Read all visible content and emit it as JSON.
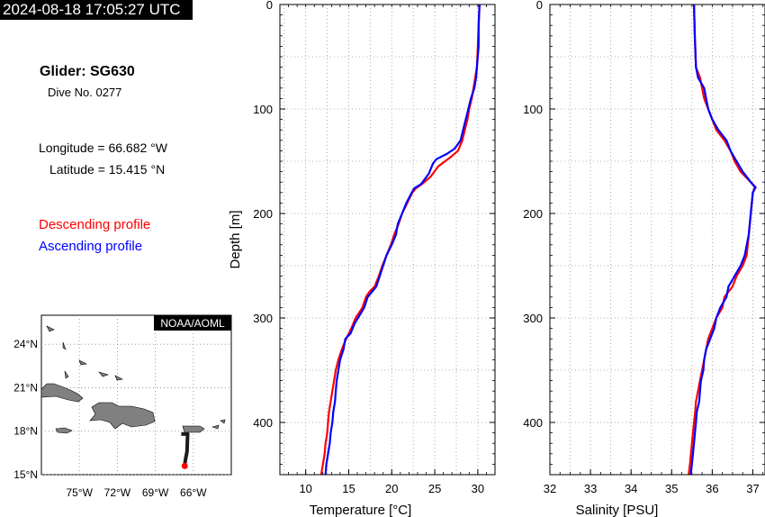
{
  "header": {
    "timestamp": "2024-08-18 17:05:27 UTC"
  },
  "info": {
    "glider": "Glider: SG630",
    "dive": "Dive No. 0277",
    "longitude": "Longitude = 66.682 °W",
    "latitude": "Latitude = 15.415 °N"
  },
  "legend": {
    "descending": "Descending profile",
    "ascending": "Ascending profile"
  },
  "colors": {
    "descending": "#ff0000",
    "ascending": "#0000ff",
    "land": "#808080",
    "track": "#1a1a1a",
    "position": "#ff0000"
  },
  "map": {
    "credit": "NOAA/AOML",
    "lat_ticks": [
      "24°N",
      "21°N",
      "18°N",
      "15°N"
    ],
    "lon_ticks": [
      "75°W",
      "72°W",
      "69°W",
      "66°W"
    ],
    "lat_values": [
      24,
      21,
      18,
      15
    ],
    "lon_values": [
      -75,
      -72,
      -69,
      -66
    ],
    "extent": {
      "lon": [
        -78,
        -63
      ],
      "lat": [
        15,
        26
      ]
    },
    "track": [
      [
        -66.95,
        17.8
      ],
      [
        -66.45,
        17.8
      ],
      [
        -66.5,
        16.6
      ],
      [
        -66.65,
        15.9
      ],
      [
        -66.682,
        15.415
      ]
    ],
    "position": [
      -66.682,
      15.415
    ]
  },
  "chart_data": [
    {
      "type": "line",
      "xlabel": "Temperature [°C]",
      "ylabel": "Depth [m]",
      "xlim": [
        7,
        32
      ],
      "ylim": [
        450,
        0
      ],
      "xticks": [
        10,
        15,
        20,
        25,
        30
      ],
      "yticks": [
        0,
        100,
        200,
        300,
        400
      ],
      "grid": true,
      "series": [
        {
          "name": "Descending profile",
          "points": [
            [
              30.2,
              0
            ],
            [
              30.1,
              20
            ],
            [
              30,
              40
            ],
            [
              29.9,
              60
            ],
            [
              29.7,
              70
            ],
            [
              29.5,
              80
            ],
            [
              29.3,
              90
            ],
            [
              29,
              100
            ],
            [
              28.8,
              110
            ],
            [
              28.5,
              120
            ],
            [
              28.2,
              130
            ],
            [
              27.7,
              140
            ],
            [
              27,
              145
            ],
            [
              26.2,
              150
            ],
            [
              25.4,
              155
            ],
            [
              24.5,
              165
            ],
            [
              23.5,
              172
            ],
            [
              22.8,
              176
            ],
            [
              22.4,
              180
            ],
            [
              21.8,
              190
            ],
            [
              21.2,
              200
            ],
            [
              20.8,
              210
            ],
            [
              20.3,
              220
            ],
            [
              19.9,
              230
            ],
            [
              19.4,
              240
            ],
            [
              18.9,
              250
            ],
            [
              18.5,
              260
            ],
            [
              18,
              270
            ],
            [
              17.4,
              275
            ],
            [
              17,
              280
            ],
            [
              16.6,
              290
            ],
            [
              16.2,
              295
            ],
            [
              15.8,
              300
            ],
            [
              15.3,
              310
            ],
            [
              14.7,
              320
            ],
            [
              14.2,
              330
            ],
            [
              13.8,
              340
            ],
            [
              13.5,
              350
            ],
            [
              13.3,
              360
            ],
            [
              13.1,
              370
            ],
            [
              12.9,
              380
            ],
            [
              12.7,
              390
            ],
            [
              12.6,
              400
            ],
            [
              12.5,
              410
            ],
            [
              12.3,
              420
            ],
            [
              12.2,
              430
            ],
            [
              12,
              440
            ],
            [
              11.8,
              450
            ]
          ]
        },
        {
          "name": "Ascending profile",
          "points": [
            [
              30.2,
              0
            ],
            [
              30.1,
              20
            ],
            [
              30.1,
              40
            ],
            [
              29.9,
              60
            ],
            [
              29.8,
              70
            ],
            [
              29.6,
              80
            ],
            [
              29.2,
              90
            ],
            [
              28.9,
              100
            ],
            [
              28.6,
              110
            ],
            [
              28.3,
              120
            ],
            [
              28,
              130
            ],
            [
              27.3,
              138
            ],
            [
              26.4,
              143
            ],
            [
              25.2,
              148
            ],
            [
              24.8,
              152
            ],
            [
              24.3,
              162
            ],
            [
              23.4,
              172
            ],
            [
              22.6,
              176
            ],
            [
              22.2,
              182
            ],
            [
              21.7,
              190
            ],
            [
              21.2,
              200
            ],
            [
              20.7,
              210
            ],
            [
              20.5,
              220
            ],
            [
              20,
              230
            ],
            [
              19.4,
              240
            ],
            [
              19,
              250
            ],
            [
              18.6,
              260
            ],
            [
              18.2,
              270
            ],
            [
              17.7,
              275
            ],
            [
              17.2,
              280
            ],
            [
              16.8,
              290
            ],
            [
              16.3,
              297
            ],
            [
              15.7,
              305
            ],
            [
              15.2,
              315
            ],
            [
              14.6,
              320
            ],
            [
              14.4,
              330
            ],
            [
              14,
              340
            ],
            [
              13.8,
              350
            ],
            [
              13.6,
              360
            ],
            [
              13.5,
              370
            ],
            [
              13.4,
              380
            ],
            [
              13.2,
              390
            ],
            [
              13.1,
              400
            ],
            [
              12.9,
              410
            ],
            [
              12.8,
              420
            ],
            [
              12.6,
              430
            ],
            [
              12.4,
              440
            ],
            [
              12.3,
              450
            ]
          ]
        }
      ]
    },
    {
      "type": "line",
      "xlabel": "Salinity [PSU]",
      "ylabel": "",
      "xlim": [
        32,
        37.3
      ],
      "ylim": [
        450,
        0
      ],
      "xticks": [
        32,
        33,
        34,
        35,
        36,
        37
      ],
      "yticks": [
        0,
        100,
        200,
        300,
        400
      ],
      "grid": true,
      "series": [
        {
          "name": "Descending profile",
          "points": [
            [
              35.55,
              0
            ],
            [
              35.57,
              30
            ],
            [
              35.6,
              60
            ],
            [
              35.7,
              70
            ],
            [
              35.75,
              80
            ],
            [
              35.8,
              90
            ],
            [
              35.9,
              100
            ],
            [
              36,
              110
            ],
            [
              36.1,
              120
            ],
            [
              36.3,
              130
            ],
            [
              36.45,
              140
            ],
            [
              36.55,
              150
            ],
            [
              36.7,
              160
            ],
            [
              36.95,
              170
            ],
            [
              37.05,
              175
            ],
            [
              37,
              180
            ],
            [
              36.95,
              200
            ],
            [
              36.9,
              220
            ],
            [
              36.85,
              240
            ],
            [
              36.75,
              250
            ],
            [
              36.6,
              260
            ],
            [
              36.5,
              270
            ],
            [
              36.3,
              280
            ],
            [
              36.25,
              290
            ],
            [
              36.1,
              300
            ],
            [
              36,
              310
            ],
            [
              35.9,
              320
            ],
            [
              35.85,
              330
            ],
            [
              35.8,
              340
            ],
            [
              35.75,
              350
            ],
            [
              35.7,
              360
            ],
            [
              35.65,
              370
            ],
            [
              35.6,
              380
            ],
            [
              35.58,
              390
            ],
            [
              35.55,
              400
            ],
            [
              35.5,
              420
            ],
            [
              35.45,
              440
            ],
            [
              35.42,
              450
            ]
          ]
        },
        {
          "name": "Ascending profile",
          "points": [
            [
              35.55,
              0
            ],
            [
              35.57,
              30
            ],
            [
              35.6,
              60
            ],
            [
              35.65,
              70
            ],
            [
              35.8,
              80
            ],
            [
              35.85,
              90
            ],
            [
              35.9,
              100
            ],
            [
              36,
              110
            ],
            [
              36.15,
              120
            ],
            [
              36.35,
              130
            ],
            [
              36.45,
              140
            ],
            [
              36.6,
              150
            ],
            [
              36.75,
              160
            ],
            [
              36.95,
              170
            ],
            [
              37.07,
              175
            ],
            [
              37,
              180
            ],
            [
              36.95,
              200
            ],
            [
              36.9,
              220
            ],
            [
              36.8,
              240
            ],
            [
              36.7,
              250
            ],
            [
              36.55,
              260
            ],
            [
              36.4,
              270
            ],
            [
              36.35,
              280
            ],
            [
              36.2,
              290
            ],
            [
              36.1,
              300
            ],
            [
              36.05,
              310
            ],
            [
              35.95,
              320
            ],
            [
              35.85,
              330
            ],
            [
              35.8,
              340
            ],
            [
              35.78,
              350
            ],
            [
              35.72,
              360
            ],
            [
              35.7,
              370
            ],
            [
              35.68,
              380
            ],
            [
              35.62,
              390
            ],
            [
              35.6,
              400
            ],
            [
              35.55,
              420
            ],
            [
              35.5,
              440
            ],
            [
              35.47,
              450
            ]
          ]
        }
      ]
    }
  ]
}
